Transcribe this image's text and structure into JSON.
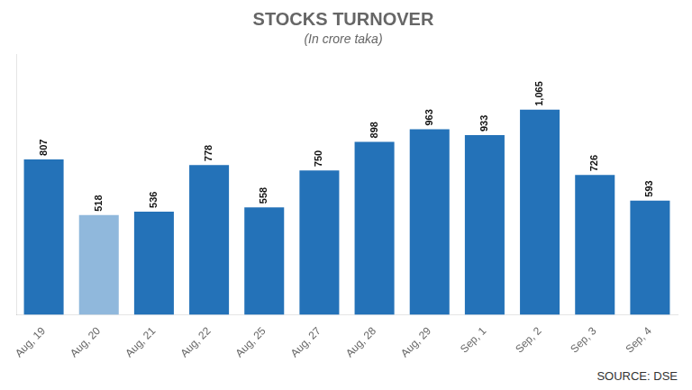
{
  "chart_data": {
    "type": "bar",
    "title": "STOCKS TURNOVER",
    "subtitle": "(In crore taka)",
    "source": "SOURCE: DSE",
    "categories": [
      "Aug, 19",
      "Aug, 20",
      "Aug, 21",
      "Aug, 22",
      "Aug, 25",
      "Aug, 27",
      "Aug, 28",
      "Aug, 29",
      "Sep, 1",
      "Sep, 2",
      "Sep, 3",
      "Sep, 4"
    ],
    "values": [
      807,
      518,
      536,
      778,
      558,
      750,
      898,
      963,
      933,
      1065,
      726,
      593
    ],
    "value_labels": [
      "807",
      "518",
      "536",
      "778",
      "558",
      "750",
      "898",
      "963",
      "933",
      "1,065",
      "726",
      "593"
    ],
    "colors": [
      "#2472b8",
      "#90b8dc",
      "#2472b8",
      "#2472b8",
      "#2472b8",
      "#2472b8",
      "#2472b8",
      "#2472b8",
      "#2472b8",
      "#2472b8",
      "#2472b8",
      "#2472b8"
    ],
    "ylim": [
      0,
      1350
    ],
    "grid": false,
    "data_labels": true,
    "tick_labels": "x"
  }
}
